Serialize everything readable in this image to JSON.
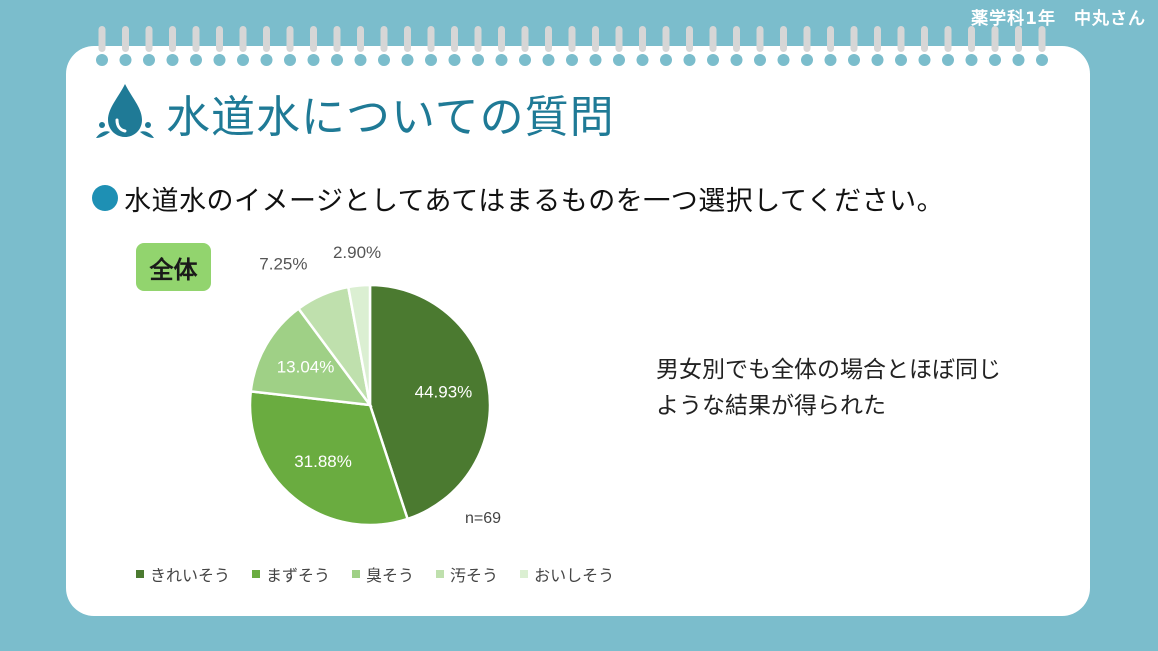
{
  "author": "薬学科1年　中丸さん",
  "title": "水道水についての質問",
  "question": "水道水のイメージとしてあてはまるものを一つ選択してください。",
  "badge": "全体",
  "note_lines": [
    "男女別でも全体の場合とほぼ同じ",
    "ような結果が得られた"
  ],
  "chart_data": {
    "type": "pie",
    "categories": [
      "きれいそう",
      "まずそう",
      "臭そう",
      "汚そう",
      "おいしそう"
    ],
    "values": [
      44.93,
      31.88,
      13.04,
      7.25,
      2.9
    ],
    "data_labels": [
      "44.93%",
      "31.88%",
      "13.04%",
      "7.25%",
      "2.90%"
    ],
    "colors": [
      "#4b7a30",
      "#6aac40",
      "#9fd086",
      "#bfe0ad",
      "#dbefd2"
    ],
    "n_label": "n=69",
    "legend_position": "bottom"
  }
}
